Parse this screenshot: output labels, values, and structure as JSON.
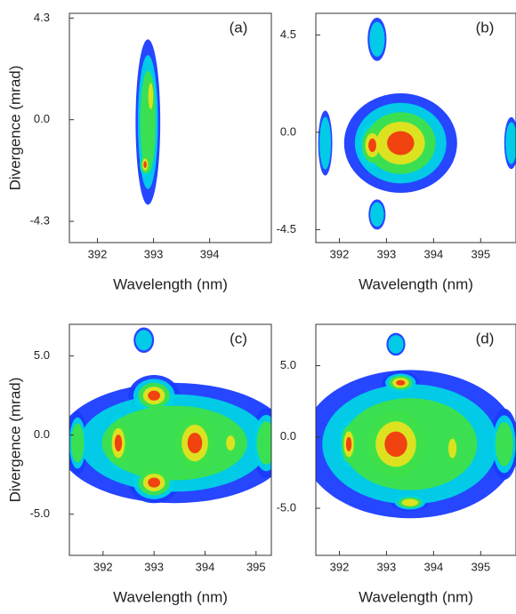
{
  "chart_data": [
    {
      "type": "heatmap",
      "label": "(a)",
      "xlabel": "Wavelength (nm)",
      "ylabel": "Divergence (mrad)",
      "xlim": [
        391.5,
        395.1
      ],
      "xticks": [
        392,
        393,
        394
      ],
      "ylim": [
        -5.2,
        4.5
      ],
      "yticks": [
        4.3,
        {
          "value": 0,
          "label": "0.0"
        },
        -4.3
      ]
    },
    {
      "type": "heatmap",
      "label": "(b)",
      "xlabel": "Wavelength (nm)",
      "xlim": [
        391.5,
        395.75
      ],
      "xticks": [
        392,
        393,
        394,
        395
      ],
      "ylim": [
        -5.1,
        5.5
      ],
      "yticks": [
        4.5,
        {
          "value": 0,
          "label": "0.0"
        },
        -4.5
      ]
    },
    {
      "type": "heatmap",
      "label": "(c)",
      "xlabel": "Wavelength (nm)",
      "ylabel": "Divergence (mrad)",
      "xlim": [
        391.34,
        395.3
      ],
      "xticks": [
        392,
        393,
        394,
        395
      ],
      "ylim": [
        -7.6,
        7.0
      ],
      "yticks": [
        {
          "value": 5,
          "label": "5.0"
        },
        {
          "value": 0,
          "label": "0.0"
        },
        {
          "value": -5,
          "label": "-5.0"
        }
      ]
    },
    {
      "type": "heatmap",
      "label": "(d)",
      "xlabel": "Wavelength (nm)",
      "xlim": [
        391.5,
        395.75
      ],
      "xticks": [
        392,
        393,
        394,
        395
      ],
      "ylim": [
        -8.3,
        7.9
      ],
      "yticks": [
        {
          "value": 5,
          "label": "5.0"
        },
        {
          "value": 0,
          "label": "0.0"
        },
        {
          "value": -5,
          "label": "-5.0"
        }
      ]
    }
  ]
}
